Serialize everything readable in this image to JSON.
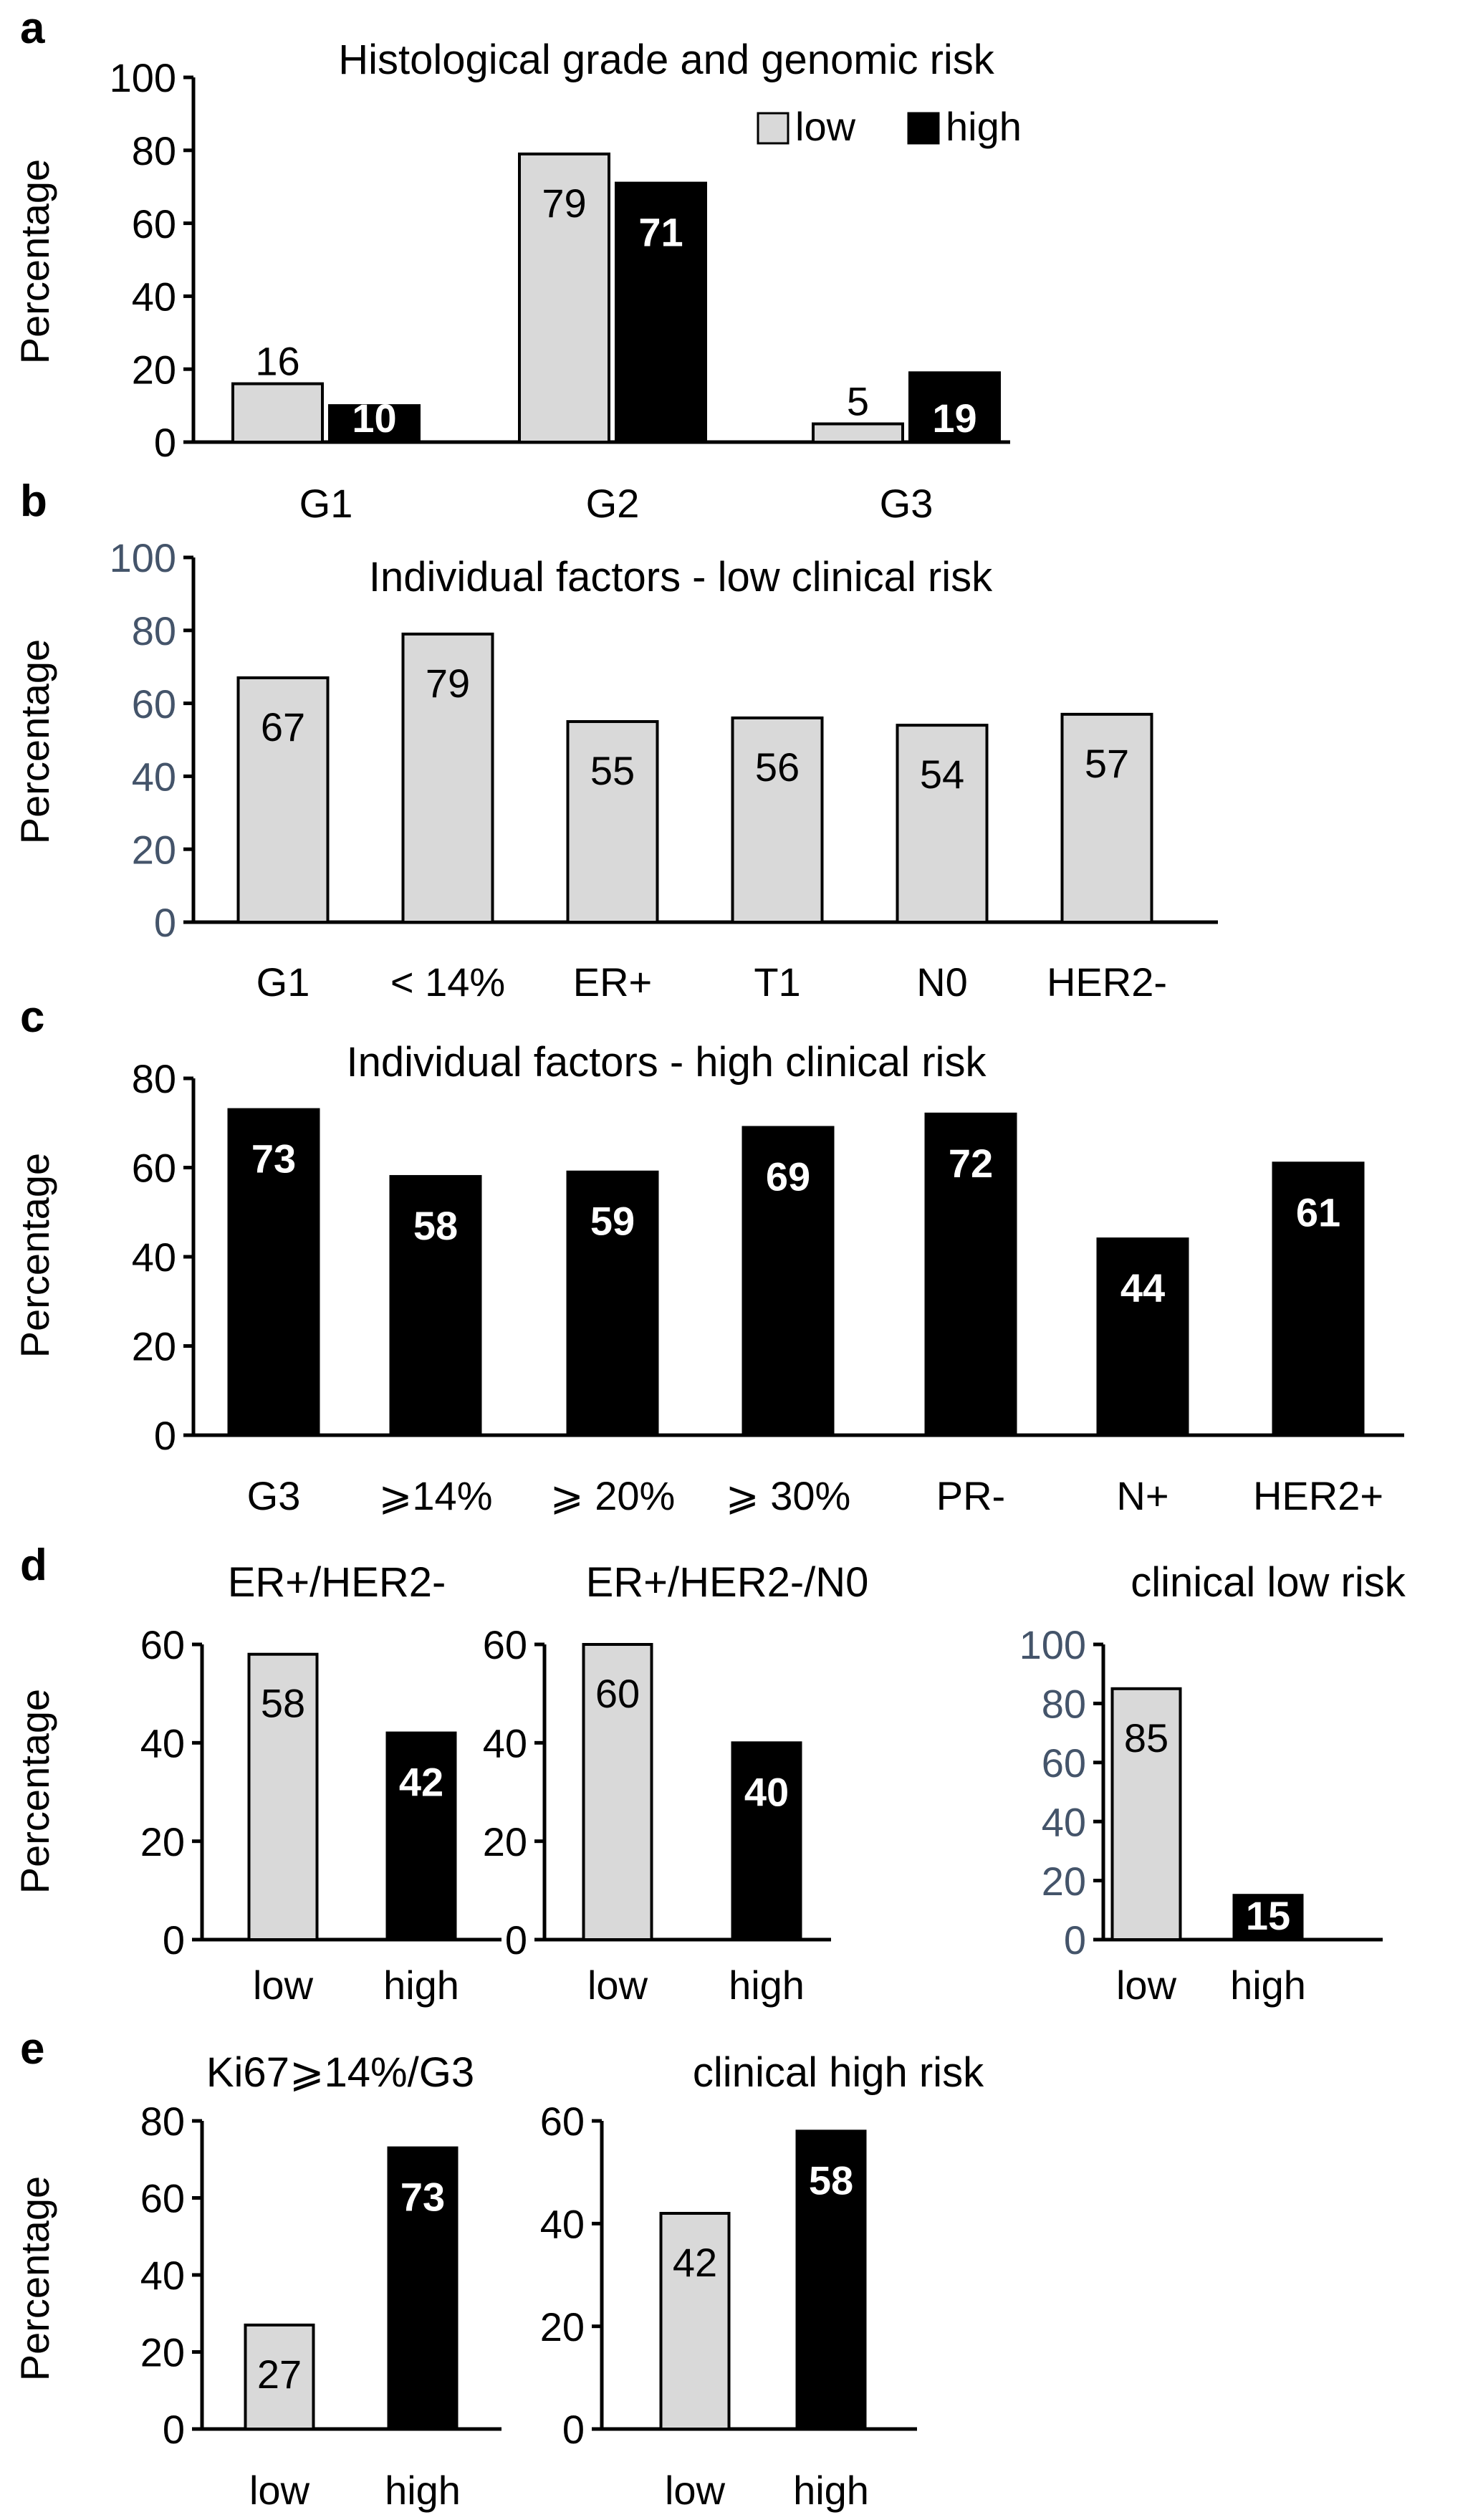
{
  "chart_data": [
    {
      "panel": "a",
      "type": "bar",
      "title": "Histological grade and genomic risk",
      "ylabel": "Percentage",
      "ylim": [
        0,
        100
      ],
      "yticks": [
        "0",
        "20",
        "40",
        "60",
        "80",
        "100"
      ],
      "categories": [
        "G1",
        "G2",
        "G3"
      ],
      "series": [
        {
          "name": "low",
          "values": [
            16,
            79,
            5
          ],
          "labels": [
            "16",
            "79",
            "5"
          ],
          "color": "#d9d9d9"
        },
        {
          "name": "high",
          "values": [
            10,
            71,
            19
          ],
          "labels": [
            "10",
            "71",
            "19"
          ],
          "color": "#000000"
        }
      ],
      "legend": [
        "low",
        "high"
      ],
      "legend_position": "top-right"
    },
    {
      "panel": "b",
      "type": "bar",
      "title": "Individual factors - low clinical risk",
      "ylabel": "Percentage",
      "ylim": [
        0,
        100
      ],
      "yticks": [
        "0",
        "20",
        "40",
        "60",
        "80",
        "100"
      ],
      "tick_color": "#44546a",
      "categories": [
        "G1",
        "< 14%",
        "ER+",
        "T1",
        "N0",
        "HER2-"
      ],
      "series": [
        {
          "name": "low",
          "values": [
            67,
            79,
            55,
            56,
            54,
            57
          ],
          "labels": [
            "67",
            "79",
            "55",
            "56",
            "54",
            "57"
          ],
          "color": "#d9d9d9"
        }
      ]
    },
    {
      "panel": "c",
      "type": "bar",
      "title": "Individual factors - high clinical risk",
      "ylabel": "Percentage",
      "ylim": [
        0,
        80
      ],
      "yticks": [
        "0",
        "20",
        "40",
        "60",
        "80"
      ],
      "categories": [
        "G3",
        "⩾14%",
        "⩾ 20%",
        "⩾ 30%",
        "PR-",
        "N+",
        "HER2+"
      ],
      "series": [
        {
          "name": "high",
          "values": [
            73,
            58,
            59,
            69,
            72,
            44,
            61
          ],
          "labels": [
            "73",
            "58",
            "59",
            "69",
            "72",
            "44",
            "61"
          ],
          "color": "#000000"
        }
      ]
    },
    {
      "panel": "d",
      "type": "bar",
      "title": "ER+/HER2-",
      "ylabel": "Percentage",
      "ylim": [
        0,
        60
      ],
      "yticks": [
        "0",
        "20",
        "40",
        "60"
      ],
      "categories": [
        "low",
        "high"
      ],
      "values": [
        58,
        42
      ],
      "labels": [
        "58",
        "42"
      ],
      "colors": [
        "#d9d9d9",
        "#000000"
      ]
    },
    {
      "panel": "d2",
      "type": "bar",
      "title": "ER+/HER2-/N0",
      "ylim": [
        0,
        60
      ],
      "yticks": [
        "0",
        "20",
        "40",
        "60"
      ],
      "categories": [
        "low",
        "high"
      ],
      "values": [
        60,
        40
      ],
      "labels": [
        "60",
        "40"
      ],
      "colors": [
        "#d9d9d9",
        "#000000"
      ]
    },
    {
      "panel": "d3",
      "type": "bar",
      "title": "clinical low risk",
      "ylim": [
        0,
        100
      ],
      "yticks": [
        "0",
        "20",
        "40",
        "60",
        "80",
        "100"
      ],
      "tick_color": "#44546a",
      "categories": [
        "low",
        "high"
      ],
      "values": [
        85,
        15
      ],
      "labels": [
        "85",
        "15"
      ],
      "colors": [
        "#d9d9d9",
        "#000000"
      ]
    },
    {
      "panel": "e",
      "type": "bar",
      "title": "Ki67⩾14%/G3",
      "ylabel": "Percentage",
      "ylim": [
        0,
        80
      ],
      "yticks": [
        "0",
        "20",
        "40",
        "60",
        "80"
      ],
      "categories": [
        "low",
        "high"
      ],
      "values": [
        27,
        73
      ],
      "labels": [
        "27",
        "73"
      ],
      "colors": [
        "#d9d9d9",
        "#000000"
      ]
    },
    {
      "panel": "e2",
      "type": "bar",
      "title": "clinical high risk",
      "ylim": [
        0,
        60
      ],
      "yticks": [
        "0",
        "20",
        "40",
        "60"
      ],
      "categories": [
        "low",
        "high"
      ],
      "values": [
        42,
        58
      ],
      "labels": [
        "42",
        "58"
      ],
      "colors": [
        "#d9d9d9",
        "#000000"
      ]
    }
  ],
  "panel_letters": [
    "a",
    "b",
    "c",
    "d",
    "e"
  ]
}
